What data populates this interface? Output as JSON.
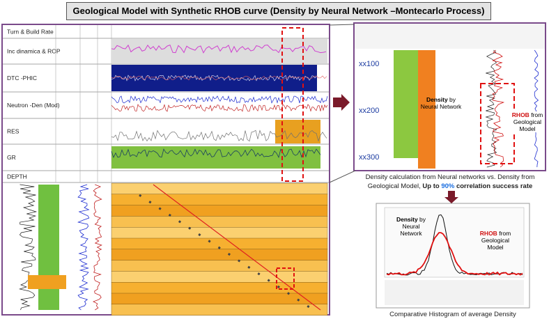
{
  "title": "Geological Model with Synthetic RHOB curve (Density by Neural Network –Montecarlo Process)",
  "log_panel": {
    "tracks": [
      "Turn & Build Rate",
      "Inc dinamica & ROP",
      "DTC -PHIC",
      "Neutron -Den (Mod)",
      "RES",
      "GR",
      "DEPTH"
    ]
  },
  "zoom_panel": {
    "depth_labels": [
      "xx100",
      "xx200",
      "xx300"
    ],
    "nn_label": {
      "bold": "Density",
      "rest": " by Neural Network"
    },
    "rhob_label": {
      "bold": "RHOB",
      "rest": " from Geological Model"
    },
    "caption": {
      "text": "Density calculation from Neural networks vs. Density from Geological Model, ",
      "bold_prefix": "Up to ",
      "highlight": "90%",
      "bold_suffix": " correlation success rate"
    }
  },
  "histogram_panel": {
    "nn_label": {
      "bold": "Density",
      "rest": " by Neural Network"
    },
    "rhob_label": {
      "bold": "RHOB",
      "rest": " from Geological Model"
    },
    "caption": "Comparative Histogram of average Density"
  }
}
